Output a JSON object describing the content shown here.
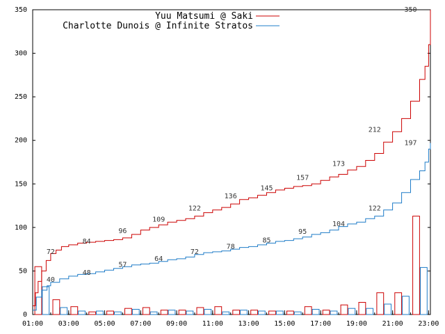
{
  "chart_data": {
    "type": "line",
    "xlim": [
      1,
      23.1
    ],
    "ylim": [
      0,
      350
    ],
    "x_ticks": [
      "01:00",
      "03:00",
      "05:00",
      "07:00",
      "09:00",
      "11:00",
      "13:00",
      "15:00",
      "17:00",
      "19:00",
      "21:00",
      "23:00"
    ],
    "y_ticks": [
      0,
      50,
      100,
      150,
      200,
      250,
      300,
      350
    ],
    "grid": false,
    "legend_position": "top",
    "series": [
      {
        "name": "Yuu Matsumi @ Saki",
        "color": "#cc0000",
        "cumulative": [
          [
            1.0,
            10
          ],
          [
            1.15,
            25
          ],
          [
            1.3,
            38
          ],
          [
            1.5,
            50
          ],
          [
            1.75,
            62
          ],
          [
            2.0,
            70
          ],
          [
            2.3,
            74
          ],
          [
            2.6,
            78
          ],
          [
            3.0,
            80
          ],
          [
            3.5,
            82
          ],
          [
            4.0,
            83
          ],
          [
            4.5,
            84
          ],
          [
            5.0,
            85
          ],
          [
            5.5,
            86
          ],
          [
            6.0,
            88
          ],
          [
            6.5,
            92
          ],
          [
            7.0,
            97
          ],
          [
            7.5,
            100
          ],
          [
            8.0,
            103
          ],
          [
            8.5,
            106
          ],
          [
            9.0,
            108
          ],
          [
            9.5,
            110
          ],
          [
            10.0,
            113
          ],
          [
            10.5,
            117
          ],
          [
            11.0,
            120
          ],
          [
            11.5,
            123
          ],
          [
            12.0,
            127
          ],
          [
            12.5,
            132
          ],
          [
            13.0,
            134
          ],
          [
            13.5,
            137
          ],
          [
            14.0,
            140
          ],
          [
            14.5,
            143
          ],
          [
            15.0,
            145
          ],
          [
            15.5,
            147
          ],
          [
            16.0,
            148
          ],
          [
            16.5,
            150
          ],
          [
            17.0,
            154
          ],
          [
            17.5,
            158
          ],
          [
            18.0,
            161
          ],
          [
            18.5,
            166
          ],
          [
            19.0,
            170
          ],
          [
            19.5,
            177
          ],
          [
            20.0,
            185
          ],
          [
            20.5,
            198
          ],
          [
            21.0,
            210
          ],
          [
            21.5,
            225
          ],
          [
            22.0,
            245
          ],
          [
            22.5,
            270
          ],
          [
            22.8,
            285
          ],
          [
            23.0,
            310
          ],
          [
            23.1,
            350
          ]
        ],
        "point_labels": [
          {
            "x": 2.0,
            "y": 72,
            "text": "72"
          },
          {
            "x": 4.0,
            "y": 84,
            "text": "84"
          },
          {
            "x": 6.0,
            "y": 96,
            "text": "96"
          },
          {
            "x": 8.0,
            "y": 109,
            "text": "109"
          },
          {
            "x": 10.0,
            "y": 122,
            "text": "122"
          },
          {
            "x": 12.0,
            "y": 136,
            "text": "136"
          },
          {
            "x": 14.0,
            "y": 145,
            "text": "145"
          },
          {
            "x": 16.0,
            "y": 157,
            "text": "157"
          },
          {
            "x": 18.0,
            "y": 173,
            "text": "173"
          },
          {
            "x": 20.0,
            "y": 212,
            "text": "212"
          },
          {
            "x": 22.0,
            "y": 350,
            "text": "350"
          }
        ],
        "hourly_counts": [
          55,
          17,
          9,
          3,
          4,
          7,
          8,
          5,
          5,
          8,
          9,
          5,
          5,
          4,
          4,
          9,
          5,
          11,
          14,
          25,
          25,
          113
        ]
      },
      {
        "name": "Charlotte Dunois @ Infinite Stratos",
        "color": "#1e7cc8",
        "cumulative": [
          [
            1.0,
            5
          ],
          [
            1.2,
            20
          ],
          [
            1.5,
            28
          ],
          [
            1.8,
            33
          ],
          [
            2.0,
            37
          ],
          [
            2.5,
            41
          ],
          [
            3.0,
            44
          ],
          [
            3.5,
            46
          ],
          [
            4.0,
            47
          ],
          [
            4.5,
            49
          ],
          [
            5.0,
            51
          ],
          [
            5.5,
            53
          ],
          [
            6.0,
            55
          ],
          [
            6.5,
            57
          ],
          [
            7.0,
            58
          ],
          [
            7.5,
            59
          ],
          [
            8.0,
            61
          ],
          [
            8.5,
            63
          ],
          [
            9.0,
            64
          ],
          [
            9.5,
            66
          ],
          [
            10.0,
            69
          ],
          [
            10.5,
            71
          ],
          [
            11.0,
            72
          ],
          [
            11.5,
            73
          ],
          [
            12.0,
            75
          ],
          [
            12.5,
            77
          ],
          [
            13.0,
            78
          ],
          [
            13.5,
            80
          ],
          [
            14.0,
            82
          ],
          [
            14.5,
            84
          ],
          [
            15.0,
            85
          ],
          [
            15.5,
            87
          ],
          [
            16.0,
            89
          ],
          [
            16.5,
            92
          ],
          [
            17.0,
            94
          ],
          [
            17.5,
            97
          ],
          [
            18.0,
            101
          ],
          [
            18.5,
            104
          ],
          [
            19.0,
            106
          ],
          [
            19.5,
            110
          ],
          [
            20.0,
            113
          ],
          [
            20.5,
            120
          ],
          [
            21.0,
            128
          ],
          [
            21.5,
            140
          ],
          [
            22.0,
            155
          ],
          [
            22.5,
            165
          ],
          [
            22.8,
            175
          ],
          [
            23.0,
            190
          ],
          [
            23.1,
            197
          ]
        ],
        "point_labels": [
          {
            "x": 2.0,
            "y": 40,
            "text": "40"
          },
          {
            "x": 4.0,
            "y": 48,
            "text": "48"
          },
          {
            "x": 6.0,
            "y": 57,
            "text": "57"
          },
          {
            "x": 8.0,
            "y": 64,
            "text": "64"
          },
          {
            "x": 10.0,
            "y": 72,
            "text": "72"
          },
          {
            "x": 12.0,
            "y": 78,
            "text": "78"
          },
          {
            "x": 14.0,
            "y": 85,
            "text": "85"
          },
          {
            "x": 16.0,
            "y": 95,
            "text": "95"
          },
          {
            "x": 18.0,
            "y": 104,
            "text": "104"
          },
          {
            "x": 20.0,
            "y": 122,
            "text": "122"
          },
          {
            "x": 22.0,
            "y": 197,
            "text": "197"
          }
        ],
        "hourly_counts": [
          32,
          8,
          4,
          4,
          3,
          6,
          3,
          5,
          4,
          6,
          3,
          5,
          4,
          4,
          3,
          6,
          4,
          7,
          7,
          12,
          21,
          54
        ]
      }
    ]
  }
}
